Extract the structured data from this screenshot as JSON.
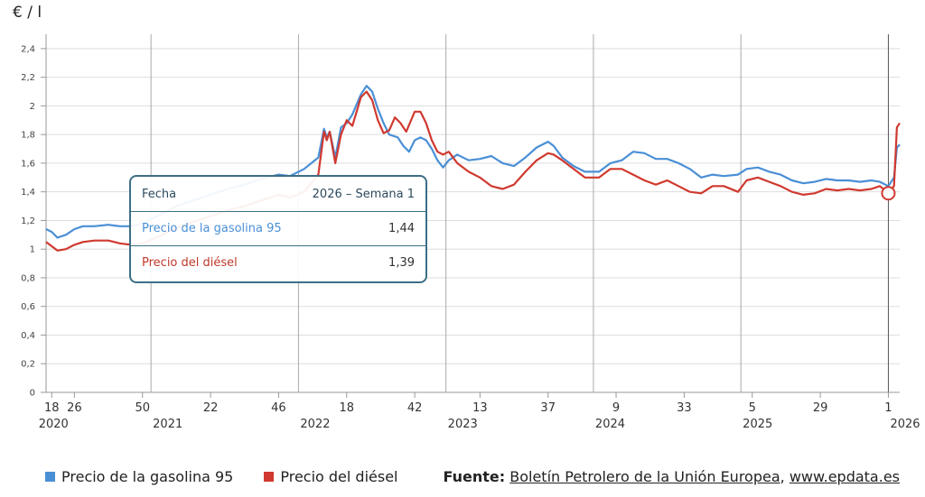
{
  "unit_label": "€ / l",
  "colors": {
    "gasoline": "#4a8fd6",
    "diesel": "#d0392f",
    "grid": "#dddddd",
    "year_line": "#aaaaaa",
    "tooltip_border": "#3c6f85"
  },
  "tooltip": {
    "header_label": "Fecha",
    "header_value": "2026 – Semana 1",
    "rows": [
      {
        "label": "Precio de la gasolina 95",
        "value": "1,44"
      },
      {
        "label": "Precio del diésel",
        "value": "1,39"
      }
    ]
  },
  "legend": {
    "items": [
      {
        "label": "Precio de la gasolina 95"
      },
      {
        "label": "Precio del diésel"
      }
    ]
  },
  "source": {
    "prefix": "Fuente",
    "text": "Boletín Petrolero de la Unión Europea",
    "separator": ", ",
    "site": "www.epdata.es"
  },
  "chart_data": {
    "type": "line",
    "ylabel": "€ / l",
    "ylim": [
      0,
      2.5
    ],
    "y_ticks": [
      {
        "v": 0,
        "label": "0"
      },
      {
        "v": 0.2,
        "label": "0,2"
      },
      {
        "v": 0.4,
        "label": "0,4"
      },
      {
        "v": 0.6,
        "label": "0,6"
      },
      {
        "v": 0.8,
        "label": "0,8"
      },
      {
        "v": 1.0,
        "label": "1"
      },
      {
        "v": 1.2,
        "label": "1,2"
      },
      {
        "v": 1.4,
        "label": "1,4"
      },
      {
        "v": 1.6,
        "label": "1,6"
      },
      {
        "v": 1.8,
        "label": "1,8"
      },
      {
        "v": 2.0,
        "label": "2"
      },
      {
        "v": 2.2,
        "label": "2,2"
      },
      {
        "v": 2.4,
        "label": "2,4"
      }
    ],
    "x_unit": "week (years 2020–2026)",
    "x_range": [
      [
        2020,
        16
      ],
      [
        2026,
        5
      ]
    ],
    "x_ticks": [
      {
        "year": 2020,
        "week": 18,
        "label": "18"
      },
      {
        "year": 2020,
        "week": 26,
        "label": "26"
      },
      {
        "year": 2020,
        "week": 50,
        "label": "50"
      },
      {
        "year": 2021,
        "week": 22,
        "label": "22"
      },
      {
        "year": 2021,
        "week": 46,
        "label": "46"
      },
      {
        "year": 2022,
        "week": 18,
        "label": "18"
      },
      {
        "year": 2022,
        "week": 42,
        "label": "42"
      },
      {
        "year": 2023,
        "week": 13,
        "label": "13"
      },
      {
        "year": 2023,
        "week": 37,
        "label": "37"
      },
      {
        "year": 2024,
        "week": 9,
        "label": "9"
      },
      {
        "year": 2024,
        "week": 33,
        "label": "33"
      },
      {
        "year": 2025,
        "week": 5,
        "label": "5"
      },
      {
        "year": 2025,
        "week": 29,
        "label": "29"
      },
      {
        "year": 2026,
        "week": 1,
        "label": "1"
      }
    ],
    "year_labels": [
      {
        "year": 2020,
        "week": 18,
        "label": "2020"
      },
      {
        "year": 2021,
        "week": 1,
        "label": "2021"
      },
      {
        "year": 2022,
        "week": 1,
        "label": "2022"
      },
      {
        "year": 2023,
        "week": 1,
        "label": "2023"
      },
      {
        "year": 2024,
        "week": 1,
        "label": "2024"
      },
      {
        "year": 2025,
        "week": 1,
        "label": "2025"
      },
      {
        "year": 2026,
        "week": 1,
        "label": "2026"
      }
    ],
    "year_lines": [
      2021,
      2022,
      2023,
      2024,
      2025,
      2026
    ],
    "highlight": {
      "year": 2026,
      "week": 1,
      "series": "diesel",
      "value": 1.39
    },
    "series": [
      {
        "name": "Precio de la gasolina 95",
        "key": "gasoline",
        "points": [
          [
            2020,
            16,
            1.14
          ],
          [
            2020,
            18,
            1.12
          ],
          [
            2020,
            20,
            1.08
          ],
          [
            2020,
            23,
            1.1
          ],
          [
            2020,
            26,
            1.14
          ],
          [
            2020,
            29,
            1.16
          ],
          [
            2020,
            33,
            1.16
          ],
          [
            2020,
            38,
            1.17
          ],
          [
            2020,
            42,
            1.16
          ],
          [
            2020,
            46,
            1.16
          ],
          [
            2020,
            50,
            1.18
          ],
          [
            2021,
            4,
            1.24
          ],
          [
            2021,
            10,
            1.3
          ],
          [
            2021,
            16,
            1.34
          ],
          [
            2021,
            22,
            1.38
          ],
          [
            2021,
            28,
            1.42
          ],
          [
            2021,
            34,
            1.45
          ],
          [
            2021,
            40,
            1.49
          ],
          [
            2021,
            46,
            1.52
          ],
          [
            2021,
            50,
            1.51
          ],
          [
            2022,
            3,
            1.56
          ],
          [
            2022,
            8,
            1.64
          ],
          [
            2022,
            10,
            1.84
          ],
          [
            2022,
            11,
            1.78
          ],
          [
            2022,
            12,
            1.82
          ],
          [
            2022,
            14,
            1.64
          ],
          [
            2022,
            16,
            1.85
          ],
          [
            2022,
            18,
            1.88
          ],
          [
            2022,
            20,
            1.94
          ],
          [
            2022,
            23,
            2.08
          ],
          [
            2022,
            25,
            2.14
          ],
          [
            2022,
            27,
            2.1
          ],
          [
            2022,
            29,
            1.98
          ],
          [
            2022,
            31,
            1.88
          ],
          [
            2022,
            33,
            1.8
          ],
          [
            2022,
            36,
            1.78
          ],
          [
            2022,
            38,
            1.72
          ],
          [
            2022,
            40,
            1.68
          ],
          [
            2022,
            42,
            1.76
          ],
          [
            2022,
            44,
            1.78
          ],
          [
            2022,
            46,
            1.76
          ],
          [
            2022,
            48,
            1.7
          ],
          [
            2022,
            50,
            1.62
          ],
          [
            2022,
            52,
            1.57
          ],
          [
            2023,
            2,
            1.62
          ],
          [
            2023,
            5,
            1.66
          ],
          [
            2023,
            9,
            1.62
          ],
          [
            2023,
            13,
            1.63
          ],
          [
            2023,
            17,
            1.65
          ],
          [
            2023,
            21,
            1.6
          ],
          [
            2023,
            25,
            1.58
          ],
          [
            2023,
            29,
            1.64
          ],
          [
            2023,
            33,
            1.71
          ],
          [
            2023,
            37,
            1.75
          ],
          [
            2023,
            39,
            1.72
          ],
          [
            2023,
            42,
            1.64
          ],
          [
            2023,
            46,
            1.58
          ],
          [
            2023,
            50,
            1.54
          ],
          [
            2024,
            3,
            1.54
          ],
          [
            2024,
            7,
            1.6
          ],
          [
            2024,
            11,
            1.62
          ],
          [
            2024,
            15,
            1.68
          ],
          [
            2024,
            19,
            1.67
          ],
          [
            2024,
            23,
            1.63
          ],
          [
            2024,
            27,
            1.63
          ],
          [
            2024,
            31,
            1.6
          ],
          [
            2024,
            35,
            1.56
          ],
          [
            2024,
            39,
            1.5
          ],
          [
            2024,
            43,
            1.52
          ],
          [
            2024,
            47,
            1.51
          ],
          [
            2024,
            52,
            1.52
          ],
          [
            2025,
            3,
            1.56
          ],
          [
            2025,
            7,
            1.57
          ],
          [
            2025,
            11,
            1.54
          ],
          [
            2025,
            15,
            1.52
          ],
          [
            2025,
            19,
            1.48
          ],
          [
            2025,
            23,
            1.46
          ],
          [
            2025,
            27,
            1.47
          ],
          [
            2025,
            31,
            1.49
          ],
          [
            2025,
            35,
            1.48
          ],
          [
            2025,
            39,
            1.48
          ],
          [
            2025,
            43,
            1.47
          ],
          [
            2025,
            47,
            1.48
          ],
          [
            2025,
            50,
            1.47
          ],
          [
            2026,
            1,
            1.44
          ],
          [
            2026,
            3,
            1.5
          ],
          [
            2026,
            4,
            1.71
          ],
          [
            2026,
            5,
            1.73
          ]
        ]
      },
      {
        "name": "Precio del diésel",
        "key": "diesel",
        "points": [
          [
            2020,
            16,
            1.05
          ],
          [
            2020,
            18,
            1.02
          ],
          [
            2020,
            20,
            0.99
          ],
          [
            2020,
            23,
            1.0
          ],
          [
            2020,
            26,
            1.03
          ],
          [
            2020,
            29,
            1.05
          ],
          [
            2020,
            33,
            1.06
          ],
          [
            2020,
            38,
            1.06
          ],
          [
            2020,
            42,
            1.04
          ],
          [
            2020,
            46,
            1.03
          ],
          [
            2020,
            50,
            1.04
          ],
          [
            2021,
            4,
            1.09
          ],
          [
            2021,
            10,
            1.15
          ],
          [
            2021,
            16,
            1.19
          ],
          [
            2021,
            22,
            1.23
          ],
          [
            2021,
            28,
            1.27
          ],
          [
            2021,
            34,
            1.3
          ],
          [
            2021,
            40,
            1.34
          ],
          [
            2021,
            46,
            1.38
          ],
          [
            2021,
            50,
            1.36
          ],
          [
            2022,
            3,
            1.4
          ],
          [
            2022,
            8,
            1.52
          ],
          [
            2022,
            10,
            1.82
          ],
          [
            2022,
            11,
            1.76
          ],
          [
            2022,
            12,
            1.82
          ],
          [
            2022,
            14,
            1.6
          ],
          [
            2022,
            16,
            1.8
          ],
          [
            2022,
            18,
            1.9
          ],
          [
            2022,
            20,
            1.86
          ],
          [
            2022,
            23,
            2.06
          ],
          [
            2022,
            25,
            2.1
          ],
          [
            2022,
            27,
            2.04
          ],
          [
            2022,
            29,
            1.9
          ],
          [
            2022,
            31,
            1.81
          ],
          [
            2022,
            33,
            1.83
          ],
          [
            2022,
            35,
            1.92
          ],
          [
            2022,
            37,
            1.88
          ],
          [
            2022,
            39,
            1.82
          ],
          [
            2022,
            42,
            1.96
          ],
          [
            2022,
            44,
            1.96
          ],
          [
            2022,
            46,
            1.88
          ],
          [
            2022,
            48,
            1.76
          ],
          [
            2022,
            50,
            1.68
          ],
          [
            2022,
            52,
            1.66
          ],
          [
            2023,
            2,
            1.68
          ],
          [
            2023,
            5,
            1.6
          ],
          [
            2023,
            9,
            1.54
          ],
          [
            2023,
            13,
            1.5
          ],
          [
            2023,
            17,
            1.44
          ],
          [
            2023,
            21,
            1.42
          ],
          [
            2023,
            25,
            1.45
          ],
          [
            2023,
            29,
            1.54
          ],
          [
            2023,
            33,
            1.62
          ],
          [
            2023,
            37,
            1.67
          ],
          [
            2023,
            39,
            1.66
          ],
          [
            2023,
            42,
            1.62
          ],
          [
            2023,
            46,
            1.56
          ],
          [
            2023,
            50,
            1.5
          ],
          [
            2024,
            3,
            1.5
          ],
          [
            2024,
            7,
            1.56
          ],
          [
            2024,
            11,
            1.56
          ],
          [
            2024,
            15,
            1.52
          ],
          [
            2024,
            19,
            1.48
          ],
          [
            2024,
            23,
            1.45
          ],
          [
            2024,
            27,
            1.48
          ],
          [
            2024,
            31,
            1.44
          ],
          [
            2024,
            35,
            1.4
          ],
          [
            2024,
            39,
            1.39
          ],
          [
            2024,
            43,
            1.44
          ],
          [
            2024,
            47,
            1.44
          ],
          [
            2024,
            52,
            1.4
          ],
          [
            2025,
            3,
            1.48
          ],
          [
            2025,
            7,
            1.5
          ],
          [
            2025,
            11,
            1.47
          ],
          [
            2025,
            15,
            1.44
          ],
          [
            2025,
            19,
            1.4
          ],
          [
            2025,
            23,
            1.38
          ],
          [
            2025,
            27,
            1.39
          ],
          [
            2025,
            31,
            1.42
          ],
          [
            2025,
            35,
            1.41
          ],
          [
            2025,
            39,
            1.42
          ],
          [
            2025,
            43,
            1.41
          ],
          [
            2025,
            47,
            1.42
          ],
          [
            2025,
            50,
            1.44
          ],
          [
            2026,
            1,
            1.39
          ],
          [
            2026,
            3,
            1.44
          ],
          [
            2026,
            4,
            1.85
          ],
          [
            2026,
            5,
            1.88
          ]
        ]
      }
    ]
  }
}
